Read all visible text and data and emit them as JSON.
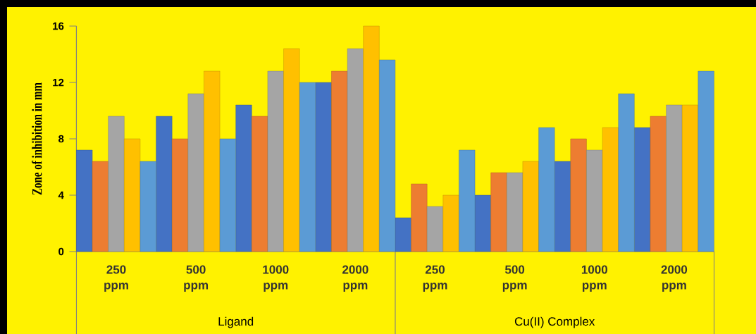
{
  "chart_data": {
    "type": "bar",
    "ylabel": "Zone of inhibition in mm",
    "categories": [
      "250 ppm",
      "500 ppm",
      "1000 ppm",
      "2000 ppm",
      "250 ppm",
      "500 ppm",
      "1000 ppm",
      "2000 ppm"
    ],
    "series": [
      {
        "color": "#4472c4",
        "values": [
          7.2,
          9.6,
          10.4,
          12,
          2.4,
          4,
          6.4,
          8.8
        ]
      },
      {
        "color": "#ed7d31",
        "values": [
          6.4,
          8,
          9.6,
          12.8,
          4.8,
          5.6,
          8,
          9.6
        ]
      },
      {
        "color": "#a5a5a5",
        "values": [
          9.6,
          11.2,
          12.8,
          14.4,
          3.2,
          5.6,
          7.2,
          10.4
        ]
      },
      {
        "color": "#ffc000",
        "values": [
          8,
          12.8,
          14.4,
          16,
          4,
          6.4,
          8.8,
          10.4
        ]
      },
      {
        "color": "#5b9bd5",
        "values": [
          6.4,
          8,
          12,
          13.6,
          7.2,
          8.8,
          11.2,
          12.8
        ]
      }
    ],
    "ylim": [
      0,
      16
    ],
    "yticks": [
      0,
      4,
      8,
      12,
      16
    ],
    "grid": false,
    "annotations": [
      "Ligand",
      "Cu(II) Complex"
    ]
  }
}
